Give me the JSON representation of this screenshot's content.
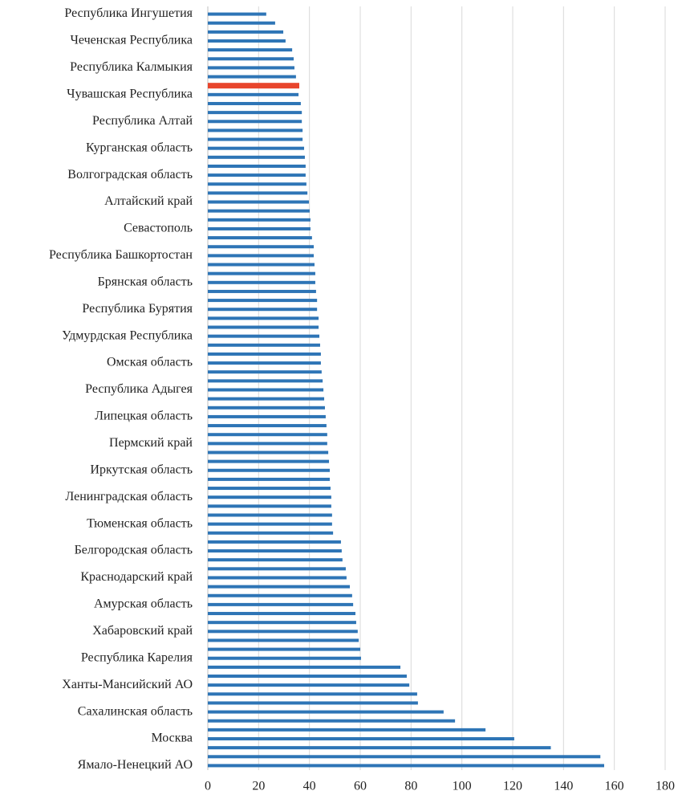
{
  "chart_data": {
    "type": "barh",
    "categories": [
      "Республика Ингушетия",
      null,
      null,
      "Чеченская Республика",
      null,
      null,
      "Республика Калмыкия",
      null,
      null,
      "Чувашская Республика",
      null,
      null,
      "Республика Алтай",
      null,
      null,
      "Курганская область",
      null,
      null,
      "Волгоградская область",
      null,
      null,
      "Алтайский край",
      null,
      null,
      "Севастополь",
      null,
      null,
      "Республика Башкортостан",
      null,
      null,
      "Брянская область",
      null,
      null,
      "Республика Бурятия",
      null,
      null,
      "Удмурдская Республика",
      null,
      null,
      "Омская область",
      null,
      null,
      "Республика Адыгея",
      null,
      null,
      "Липецкая область",
      null,
      null,
      "Пермский край",
      null,
      null,
      "Иркутская область",
      null,
      null,
      "Ленинградская область",
      null,
      null,
      "Тюменская область",
      null,
      null,
      "Белгородская область",
      null,
      null,
      "Краснодарский край",
      null,
      null,
      "Амурская область",
      null,
      null,
      "Хабаровский край",
      null,
      null,
      "Республика Карелия",
      null,
      null,
      "Ханты-Мансийский АО",
      null,
      null,
      "Сахалинская область",
      null,
      null,
      "Москва",
      null,
      null,
      "Ямало-Ненецкий АО"
    ],
    "values": [
      23,
      26.5,
      29.7,
      30.6,
      33.2,
      33.8,
      34.1,
      34.7,
      36,
      35.7,
      36.6,
      37,
      37,
      37.3,
      37.3,
      37.9,
      38.2,
      38.5,
      38.5,
      38.8,
      39.2,
      39.8,
      40.1,
      40.4,
      40.4,
      41,
      41.7,
      41.7,
      42,
      42.3,
      42.3,
      42.6,
      43,
      43,
      43.6,
      43.6,
      43.9,
      44.2,
      44.5,
      44.5,
      44.8,
      45.2,
      45.5,
      45.8,
      46.1,
      46.4,
      46.7,
      47,
      47,
      47.4,
      47.7,
      48,
      48,
      48.3,
      48.6,
      48.6,
      48.9,
      48.9,
      49.3,
      52.4,
      52.7,
      53,
      54.3,
      54.6,
      55.9,
      56.8,
      57.2,
      58.1,
      58.4,
      59,
      59.4,
      60,
      60.3,
      75.8,
      78.3,
      79.3,
      82.4,
      82.7,
      92.8,
      97.3,
      109.3,
      120.6,
      135,
      154.5,
      156
    ],
    "color": "#2e75b6",
    "highlight_index": 8,
    "highlight_color": "#e8452c",
    "xlim": [
      0,
      180
    ],
    "xticks": [
      0,
      20,
      40,
      60,
      80,
      100,
      120,
      140,
      160,
      180
    ],
    "grid": true
  }
}
